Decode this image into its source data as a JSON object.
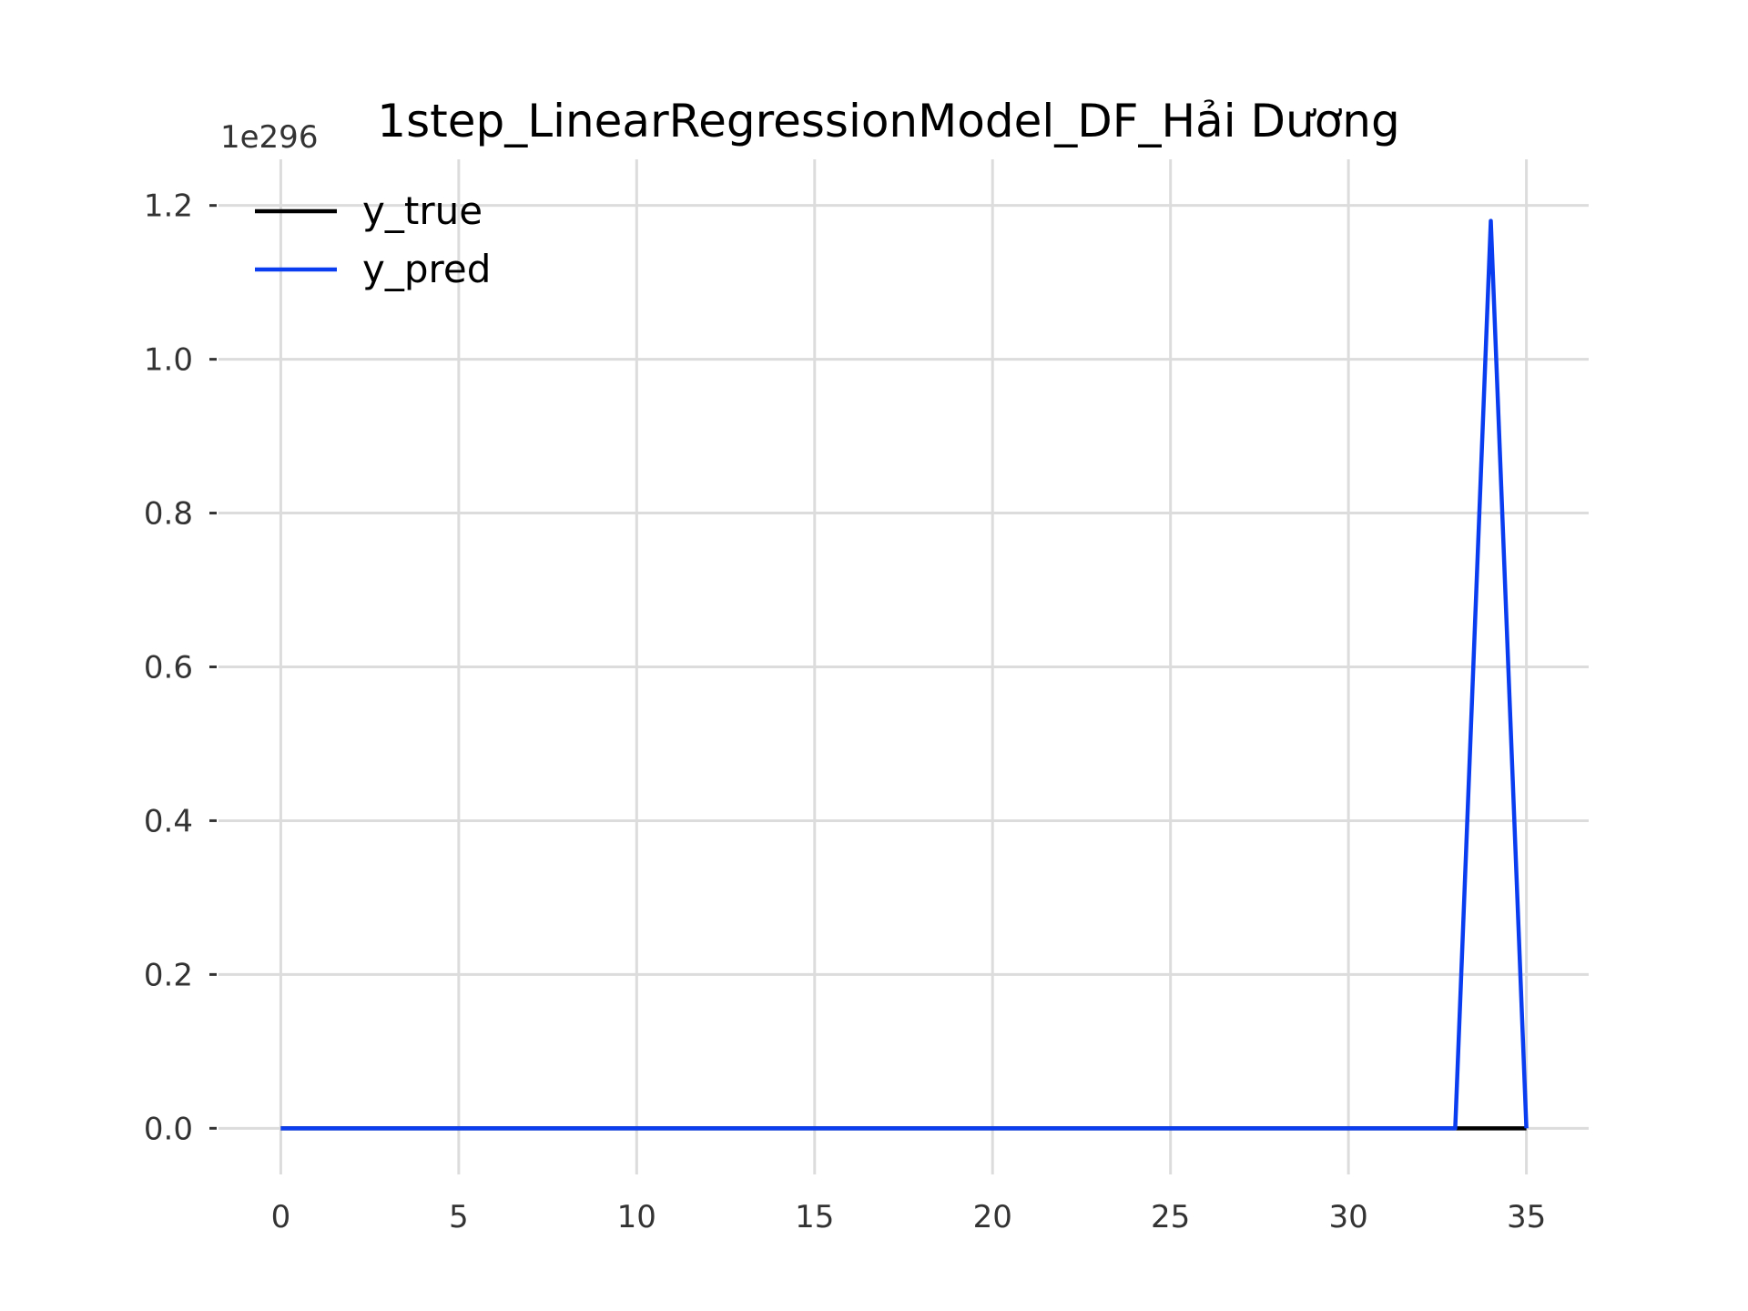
{
  "chart_data": {
    "type": "line",
    "title": "1step_LinearRegressionModel_DF_Hải Dương",
    "xlabel": "",
    "ylabel": "",
    "y_offset_label": "1e296",
    "xlim": [
      -1.75,
      36.75
    ],
    "ylim": [
      -0.06,
      1.26
    ],
    "x_ticks": [
      0,
      5,
      10,
      15,
      20,
      25,
      30,
      35
    ],
    "x_tick_labels": [
      "0",
      "5",
      "10",
      "15",
      "20",
      "25",
      "30",
      "35"
    ],
    "y_ticks": [
      0.0,
      0.2,
      0.4,
      0.6,
      0.8,
      1.0,
      1.2
    ],
    "y_tick_labels": [
      "0.0",
      "0.2",
      "0.4",
      "0.6",
      "0.8",
      "1.0",
      "1.2"
    ],
    "grid": true,
    "legend_position": "top-left",
    "series": [
      {
        "name": "y_true",
        "color": "#000000",
        "x": [
          0,
          1,
          2,
          3,
          4,
          5,
          6,
          7,
          8,
          9,
          10,
          11,
          12,
          13,
          14,
          15,
          16,
          17,
          18,
          19,
          20,
          21,
          22,
          23,
          24,
          25,
          26,
          27,
          28,
          29,
          30,
          31,
          32,
          33,
          34,
          35
        ],
        "values": [
          0,
          0,
          0,
          0,
          0,
          0,
          0,
          0,
          0,
          0,
          0,
          0,
          0,
          0,
          0,
          0,
          0,
          0,
          0,
          0,
          0,
          0,
          0,
          0,
          0,
          0,
          0,
          0,
          0,
          0,
          0,
          0,
          0,
          0,
          0,
          0
        ]
      },
      {
        "name": "y_pred",
        "color": "#0a3cf0",
        "x": [
          0,
          1,
          2,
          3,
          4,
          5,
          6,
          7,
          8,
          9,
          10,
          11,
          12,
          13,
          14,
          15,
          16,
          17,
          18,
          19,
          20,
          21,
          22,
          23,
          24,
          25,
          26,
          27,
          28,
          29,
          30,
          31,
          32,
          33,
          34,
          35
        ],
        "values": [
          0,
          0,
          0,
          0,
          0,
          0,
          0,
          0,
          0,
          0,
          0,
          0,
          0,
          0,
          0,
          0,
          0,
          0,
          0,
          0,
          0,
          0,
          0,
          0,
          0,
          0,
          0,
          0,
          0,
          0,
          0,
          0,
          0,
          0,
          1.18,
          0
        ]
      }
    ]
  }
}
